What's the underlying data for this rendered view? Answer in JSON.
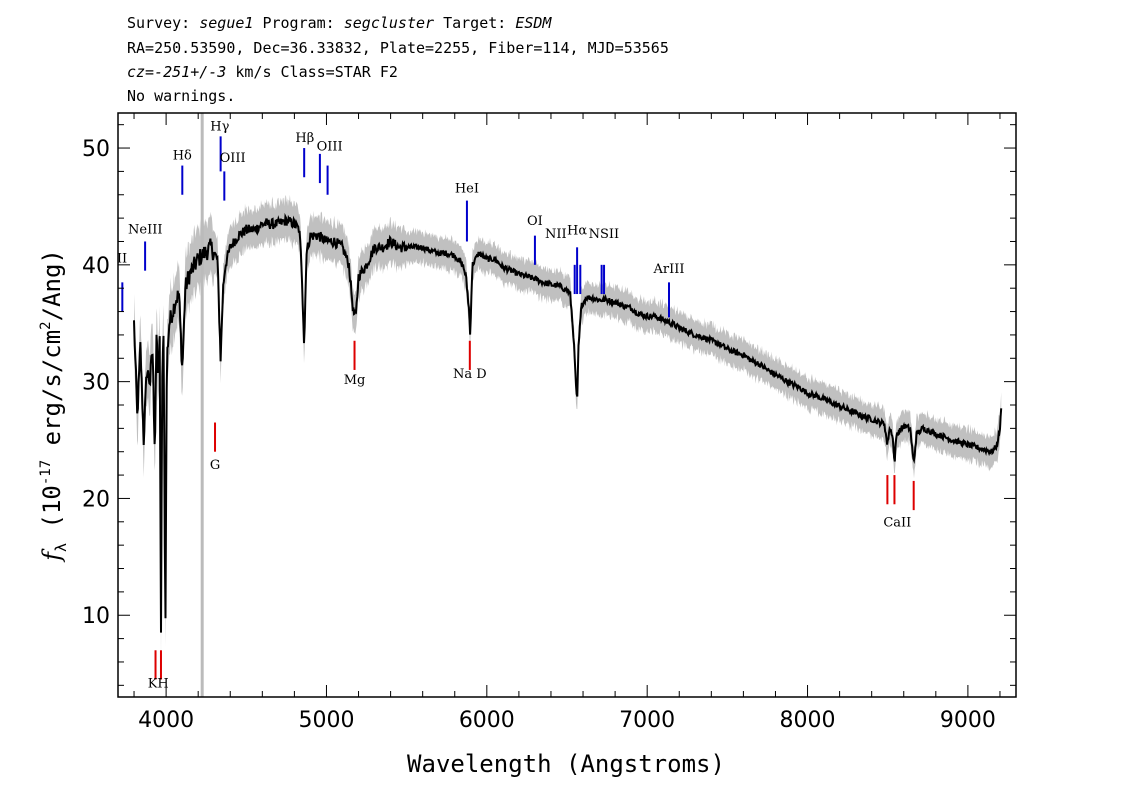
{
  "header": {
    "line1": {
      "survey_label": "Survey: ",
      "survey": "segue1",
      "program_label": " Program: ",
      "program": "segcluster",
      "target_label": " Target: ",
      "target": "ESDM"
    },
    "line2": "RA=250.53590, Dec=36.33832, Plate=2255, Fiber=114, MJD=53565",
    "line3": {
      "cz": "cz=-251+/-3",
      "rest": " km/s Class=STAR F2"
    },
    "line4": "No warnings."
  },
  "chart_data": {
    "type": "line",
    "xlabel": "Wavelength (Angstroms)",
    "ylabel_parts": {
      "f": "f",
      "sub": "λ",
      "pre": " (10",
      "sup1": "-17",
      "mid": " erg/s/cm",
      "sup2": "2",
      "post": "/Ang)"
    },
    "xlim": [
      3700,
      9300
    ],
    "ylim": [
      3,
      53
    ],
    "xticks": [
      4000,
      5000,
      6000,
      7000,
      8000,
      9000
    ],
    "yticks": [
      10,
      20,
      30,
      40,
      50
    ],
    "colors": {
      "flux": "#000000",
      "error_band": "#c0c0c0",
      "emission": "#0000cc",
      "absorption": "#dd0000",
      "dropout": "#bbbbbb"
    },
    "dropout_line_x": 4225,
    "flux_anchor_points": [
      [
        3800,
        35
      ],
      [
        3820,
        27
      ],
      [
        3840,
        33
      ],
      [
        3860,
        25
      ],
      [
        3880,
        31
      ],
      [
        3900,
        30
      ],
      [
        3915,
        33
      ],
      [
        3930,
        24
      ],
      [
        3940,
        34
      ],
      [
        3950,
        30
      ],
      [
        3960,
        34
      ],
      [
        3968,
        8
      ],
      [
        3975,
        30
      ],
      [
        3985,
        34
      ],
      [
        3995,
        8
      ],
      [
        4005,
        32
      ],
      [
        4020,
        35
      ],
      [
        4040,
        36
      ],
      [
        4060,
        37
      ],
      [
        4080,
        37.5
      ],
      [
        4101,
        31
      ],
      [
        4120,
        38
      ],
      [
        4140,
        39
      ],
      [
        4160,
        39.5
      ],
      [
        4180,
        40
      ],
      [
        4200,
        40.5
      ],
      [
        4240,
        41
      ],
      [
        4280,
        41.5
      ],
      [
        4320,
        40.5
      ],
      [
        4340,
        32
      ],
      [
        4355,
        38
      ],
      [
        4370,
        40
      ],
      [
        4400,
        41.5
      ],
      [
        4450,
        42.5
      ],
      [
        4500,
        43
      ],
      [
        4550,
        43
      ],
      [
        4600,
        43.5
      ],
      [
        4650,
        43.5
      ],
      [
        4700,
        43.5
      ],
      [
        4750,
        43.8
      ],
      [
        4800,
        43.5
      ],
      [
        4830,
        43
      ],
      [
        4845,
        40
      ],
      [
        4861,
        33
      ],
      [
        4875,
        41
      ],
      [
        4900,
        42.5
      ],
      [
        4950,
        42.5
      ],
      [
        5000,
        42
      ],
      [
        5050,
        42
      ],
      [
        5100,
        41.5
      ],
      [
        5140,
        40
      ],
      [
        5167,
        36
      ],
      [
        5183,
        35.5
      ],
      [
        5200,
        39
      ],
      [
        5250,
        40
      ],
      [
        5300,
        41.5
      ],
      [
        5350,
        41.5
      ],
      [
        5400,
        42
      ],
      [
        5450,
        41.5
      ],
      [
        5500,
        41.5
      ],
      [
        5550,
        41.5
      ],
      [
        5600,
        41.5
      ],
      [
        5650,
        41.2
      ],
      [
        5700,
        41
      ],
      [
        5750,
        41
      ],
      [
        5800,
        40.8
      ],
      [
        5850,
        40
      ],
      [
        5870,
        39
      ],
      [
        5890,
        36
      ],
      [
        5896,
        34
      ],
      [
        5910,
        40
      ],
      [
        5950,
        41
      ],
      [
        6000,
        40.5
      ],
      [
        6050,
        40.5
      ],
      [
        6100,
        39.8
      ],
      [
        6150,
        39.5
      ],
      [
        6200,
        39.2
      ],
      [
        6250,
        39
      ],
      [
        6300,
        38.8
      ],
      [
        6350,
        38.5
      ],
      [
        6400,
        38.3
      ],
      [
        6450,
        38.2
      ],
      [
        6500,
        37.8
      ],
      [
        6520,
        37.5
      ],
      [
        6540,
        34
      ],
      [
        6555,
        30
      ],
      [
        6563,
        28
      ],
      [
        6572,
        33
      ],
      [
        6590,
        36.5
      ],
      [
        6620,
        37.2
      ],
      [
        6650,
        37.2
      ],
      [
        6700,
        37
      ],
      [
        6750,
        37
      ],
      [
        6800,
        36.8
      ],
      [
        6850,
        36.5
      ],
      [
        6900,
        36.3
      ],
      [
        6950,
        35.8
      ],
      [
        7000,
        35.6
      ],
      [
        7050,
        35.6
      ],
      [
        7100,
        35.3
      ],
      [
        7150,
        35
      ],
      [
        7200,
        34.6
      ],
      [
        7250,
        34.3
      ],
      [
        7300,
        34
      ],
      [
        7350,
        33.8
      ],
      [
        7400,
        33.5
      ],
      [
        7450,
        33.2
      ],
      [
        7500,
        32.8
      ],
      [
        7550,
        32.5
      ],
      [
        7600,
        32.3
      ],
      [
        7650,
        31.8
      ],
      [
        7700,
        31.5
      ],
      [
        7750,
        31
      ],
      [
        7800,
        30.6
      ],
      [
        7850,
        30.2
      ],
      [
        7900,
        29.8
      ],
      [
        7950,
        29.5
      ],
      [
        8000,
        29
      ],
      [
        8050,
        28.8
      ],
      [
        8100,
        28.5
      ],
      [
        8150,
        28.2
      ],
      [
        8200,
        27.9
      ],
      [
        8250,
        27.6
      ],
      [
        8300,
        27.3
      ],
      [
        8350,
        27
      ],
      [
        8400,
        26.8
      ],
      [
        8450,
        26.5
      ],
      [
        8480,
        26.4
      ],
      [
        8498,
        24.5
      ],
      [
        8510,
        26
      ],
      [
        8530,
        25.5
      ],
      [
        8542,
        23
      ],
      [
        8555,
        25.5
      ],
      [
        8600,
        26.2
      ],
      [
        8640,
        26
      ],
      [
        8662,
        23
      ],
      [
        8680,
        25.5
      ],
      [
        8720,
        26
      ],
      [
        8760,
        25.8
      ],
      [
        8800,
        25.5
      ],
      [
        8850,
        25.3
      ],
      [
        8900,
        25
      ],
      [
        8950,
        24.8
      ],
      [
        9000,
        24.6
      ],
      [
        9050,
        24.4
      ],
      [
        9100,
        24.2
      ],
      [
        9150,
        24
      ],
      [
        9180,
        24.5
      ],
      [
        9200,
        26
      ],
      [
        9210,
        28
      ]
    ],
    "spectral_lines": [
      {
        "label": "OII",
        "x": 3727,
        "y1": 36,
        "y2": 38.5,
        "type": "emission"
      },
      {
        "label": "NeIII",
        "x": 3869,
        "y1": 39.5,
        "y2": 42,
        "type": "emission"
      },
      {
        "label": "Hδ",
        "x": 4101,
        "y1": 46,
        "y2": 48.5,
        "type": "emission"
      },
      {
        "label": "Hγ",
        "x": 4340,
        "y1": 48,
        "y2": 51,
        "type": "emission"
      },
      {
        "label": "OIII",
        "x": 4363,
        "y1": 45.5,
        "y2": 48,
        "type": "emission"
      },
      {
        "label": "Hβ",
        "x": 4861,
        "y1": 47.5,
        "y2": 50,
        "type": "emission"
      },
      {
        "label": "OIII",
        "x": 4959,
        "y1": 47,
        "y2": 49.5,
        "type": "emission"
      },
      {
        "label": "OIII",
        "x": 5007,
        "y1": 46,
        "y2": 48.5,
        "type": "emission"
      },
      {
        "label": "HeI",
        "x": 5876,
        "y1": 42,
        "y2": 45.5,
        "type": "emission"
      },
      {
        "label": "OI",
        "x": 6300,
        "y1": 40,
        "y2": 42.5,
        "type": "emission"
      },
      {
        "label": "NII",
        "x": 6548,
        "y1": 37.5,
        "y2": 40,
        "type": "emission"
      },
      {
        "label": "Hα",
        "x": 6563,
        "y1": 37.5,
        "y2": 41.5,
        "type": "emission"
      },
      {
        "label": "NII",
        "x": 6583,
        "y1": 37.5,
        "y2": 40,
        "type": "emission"
      },
      {
        "label": "SII",
        "x": 6716,
        "y1": 37.5,
        "y2": 40,
        "type": "emission"
      },
      {
        "label": "SII",
        "x": 6731,
        "y1": 37.5,
        "y2": 40,
        "type": "emission"
      },
      {
        "label": "ArIII",
        "x": 7136,
        "y1": 35.5,
        "y2": 38.5,
        "type": "emission"
      },
      {
        "label": "K",
        "x": 3934,
        "y1": 4.5,
        "y2": 7,
        "type": "absorption"
      },
      {
        "label": "H",
        "x": 3968,
        "y1": 4.5,
        "y2": 7,
        "type": "absorption"
      },
      {
        "label": "G",
        "x": 4305,
        "y1": 24,
        "y2": 26.5,
        "type": "absorption"
      },
      {
        "label": "Mg",
        "x": 5175,
        "y1": 31,
        "y2": 33.5,
        "type": "absorption"
      },
      {
        "label": "Na D",
        "x": 5894,
        "y1": 31,
        "y2": 33.5,
        "type": "absorption"
      },
      {
        "label": "CaII",
        "x": 8498,
        "y1": 19.5,
        "y2": 22,
        "type": "absorption"
      },
      {
        "label": "CaII",
        "x": 8542,
        "y1": 19.5,
        "y2": 22,
        "type": "absorption"
      },
      {
        "label": "CaII",
        "x": 8662,
        "y1": 19,
        "y2": 21.5,
        "type": "absorption"
      }
    ],
    "line_labels": [
      {
        "text": "II",
        "x": 3725,
        "y": 40.2
      },
      {
        "text": "NeIII",
        "x": 3870,
        "y": 42.7
      },
      {
        "text": "Hδ",
        "x": 4101,
        "y": 49
      },
      {
        "text": "Hγ",
        "x": 4335,
        "y": 51.5
      },
      {
        "text": "OIII",
        "x": 4415,
        "y": 48.8
      },
      {
        "text": "Hβ",
        "x": 4865,
        "y": 50.5
      },
      {
        "text": "OIII",
        "x": 5020,
        "y": 49.8
      },
      {
        "text": "HeI",
        "x": 5876,
        "y": 46.2
      },
      {
        "text": "OI",
        "x": 6300,
        "y": 43.4
      },
      {
        "text": "NII",
        "x": 6430,
        "y": 42.3
      },
      {
        "text": "Hα",
        "x": 6563,
        "y": 42.6
      },
      {
        "text": "NSII",
        "x": 6730,
        "y": 42.3
      },
      {
        "text": "ArIII",
        "x": 7136,
        "y": 39.3
      },
      {
        "text": "KH",
        "x": 3951,
        "y": 3.8
      },
      {
        "text": "G",
        "x": 4305,
        "y": 22.5
      },
      {
        "text": "Mg",
        "x": 5175,
        "y": 29.8
      },
      {
        "text": "Na D",
        "x": 5894,
        "y": 30.3
      },
      {
        "text": "CaII",
        "x": 8560,
        "y": 17.6
      }
    ]
  }
}
